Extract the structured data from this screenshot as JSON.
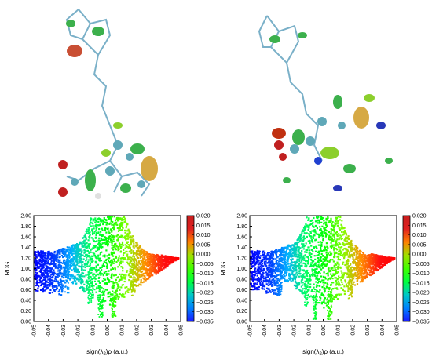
{
  "colors": {
    "colorbar_stops": [
      "#1a1aff",
      "#00b4d8",
      "#00ff00",
      "#9acd32",
      "#ff4500",
      "#d42020"
    ],
    "scatter_colors": [
      "#0a0aff",
      "#0077cc",
      "#00ffff",
      "#20c040",
      "#00ff00",
      "#c0c000",
      "#ff2020",
      "#ff4040"
    ],
    "isosurface_colors": [
      "#3cb04c",
      "#8ccf2c",
      "#d2a030",
      "#2838b8",
      "#c03010"
    ]
  },
  "molecules": [
    {
      "icon": "molecule-isosurface-left"
    },
    {
      "icon": "molecule-isosurface-right"
    }
  ],
  "chart_data": [
    {
      "type": "scatter",
      "title": "",
      "xlabel_parts": {
        "prefix": "sign(λ",
        "sub": "2",
        "suffix": ")ρ (a.u.)"
      },
      "ylabel": "RDG",
      "xlim": [
        -0.05,
        0.05
      ],
      "ylim": [
        0.0,
        2.0
      ],
      "x_ticks": [
        "-0.05",
        "-0.04",
        "-0.03",
        "-0.02",
        "-0.01",
        "0.00",
        "0.01",
        "0.02",
        "0.03",
        "0.04",
        "0.05"
      ],
      "y_ticks": [
        "0.00",
        "0.20",
        "0.40",
        "0.60",
        "0.80",
        "1.00",
        "1.20",
        "1.40",
        "1.60",
        "1.80",
        "2.00"
      ],
      "colorbar": {
        "range": [
          -0.035,
          0.02
        ],
        "ticks": [
          "0.020",
          "0.015",
          "0.010",
          "0.005",
          "0.000",
          "−0.005",
          "−0.010",
          "−0.015",
          "−0.020",
          "−0.025",
          "−0.030",
          "−0.035"
        ]
      },
      "spikes": [
        {
          "x": -0.028,
          "min_rdg": 0.55
        },
        {
          "x": -0.012,
          "min_rdg": 0.35
        },
        {
          "x": -0.005,
          "min_rdg": 0.1
        },
        {
          "x": 0.004,
          "min_rdg": 0.1
        },
        {
          "x": 0.017,
          "min_rdg": 0.5
        }
      ],
      "grid": false
    },
    {
      "type": "scatter",
      "title": "",
      "xlabel_parts": {
        "prefix": "sign(λ",
        "sub": "2",
        "suffix": ")ρ (a.u.)"
      },
      "ylabel": "RDG",
      "xlim": [
        -0.05,
        0.05
      ],
      "ylim": [
        0.0,
        2.0
      ],
      "x_ticks": [
        "-0.05",
        "-0.04",
        "-0.03",
        "-0.02",
        "-0.01",
        "0.00",
        "0.01",
        "0.02",
        "0.03",
        "0.04",
        "0.05"
      ],
      "y_ticks": [
        "0.00",
        "0.20",
        "0.40",
        "0.60",
        "0.80",
        "1.00",
        "1.20",
        "1.40",
        "1.60",
        "1.80",
        "2.00"
      ],
      "colorbar": {
        "range": [
          -0.035,
          0.02
        ],
        "ticks": [
          "0.020",
          "0.015",
          "0.010",
          "0.005",
          "0.000",
          "−0.005",
          "−0.010",
          "−0.015",
          "−0.020",
          "−0.025",
          "−0.030",
          "−0.035"
        ]
      },
      "spikes": [
        {
          "x": -0.03,
          "min_rdg": 0.5
        },
        {
          "x": -0.012,
          "min_rdg": 0.3
        },
        {
          "x": -0.006,
          "min_rdg": 0.05
        },
        {
          "x": 0.004,
          "min_rdg": 0.05
        },
        {
          "x": 0.018,
          "min_rdg": 0.45
        }
      ],
      "grid": false
    }
  ]
}
